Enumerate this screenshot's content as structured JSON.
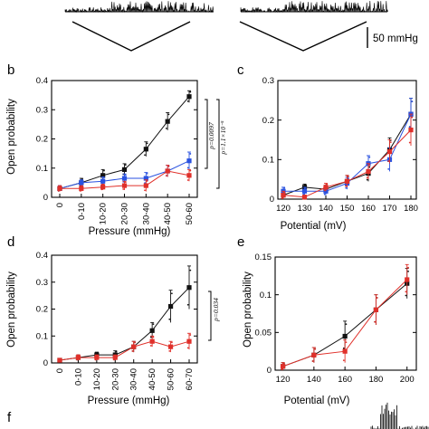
{
  "scale_bar": {
    "label": "50 mmHg"
  },
  "panel_letters": {
    "b": "b",
    "c": "c",
    "d": "d",
    "e": "e",
    "f": "f"
  },
  "chart_data": [
    {
      "panel": "b",
      "type": "line",
      "xlabel": "Pressure (mmHg)",
      "ylabel": "Open probability",
      "categories": [
        "0",
        "0-10",
        "10-20",
        "20-30",
        "30-40",
        "40-50",
        "50-60"
      ],
      "ylim": [
        0,
        0.4
      ],
      "yticks": [
        "0",
        "0.1",
        "0.2",
        "0.3",
        "0.4"
      ],
      "series": [
        {
          "color": "#111111",
          "values": [
            0.03,
            0.05,
            0.075,
            0.095,
            0.165,
            0.26,
            0.345
          ],
          "err": [
            0.01,
            0.015,
            0.02,
            0.02,
            0.025,
            0.03,
            0.02
          ]
        },
        {
          "color": "#2a52e0",
          "values": [
            0.03,
            0.05,
            0.055,
            0.065,
            0.065,
            0.09,
            0.125
          ],
          "err": [
            0.01,
            0.01,
            0.015,
            0.015,
            0.02,
            0.02,
            0.03
          ]
        },
        {
          "color": "#e0302a",
          "values": [
            0.03,
            0.03,
            0.035,
            0.04,
            0.04,
            0.09,
            0.075
          ],
          "err": [
            0.01,
            0.01,
            0.01,
            0.015,
            0.02,
            0.02,
            0.02
          ]
        }
      ],
      "brackets": [
        {
          "text": "p=0.0097"
        },
        {
          "text": "p=1.1×10⁻⁵"
        }
      ]
    },
    {
      "panel": "c",
      "type": "line",
      "xlabel": "Potential (mV)",
      "ylabel": "",
      "categories": [
        "120",
        "130",
        "140",
        "150",
        "160",
        "170",
        "180"
      ],
      "ylim": [
        0,
        0.3
      ],
      "yticks": [
        "0",
        "0.1",
        "0.2",
        "0.3"
      ],
      "series": [
        {
          "color": "#111111",
          "values": [
            0.01,
            0.03,
            0.025,
            0.045,
            0.065,
            0.125,
            0.215
          ],
          "err": [
            0.01,
            0.008,
            0.01,
            0.015,
            0.02,
            0.03,
            0.04
          ]
        },
        {
          "color": "#2a52e0",
          "values": [
            0.02,
            0.02,
            0.02,
            0.04,
            0.09,
            0.1,
            0.215
          ],
          "err": [
            0.01,
            0.01,
            0.01,
            0.015,
            0.02,
            0.03,
            0.04
          ]
        },
        {
          "color": "#e0302a",
          "values": [
            0.01,
            0.005,
            0.03,
            0.045,
            0.07,
            0.12,
            0.175
          ],
          "err": [
            0.01,
            0.005,
            0.01,
            0.015,
            0.02,
            0.03,
            0.04
          ]
        }
      ]
    },
    {
      "panel": "d",
      "type": "line",
      "xlabel": "Pressure (mmHg)",
      "ylabel": "Open probability",
      "categories": [
        "0",
        "0-10",
        "10-20",
        "20-30",
        "30-40",
        "40-50",
        "50-60",
        "60-70"
      ],
      "ylim": [
        0,
        0.4
      ],
      "yticks": [
        "0",
        "0.1",
        "0.2",
        "0.3",
        "0.4"
      ],
      "series": [
        {
          "color": "#111111",
          "values": [
            0.01,
            0.02,
            0.03,
            0.03,
            0.06,
            0.12,
            0.21,
            0.28
          ],
          "err": [
            0.005,
            0.01,
            0.01,
            0.015,
            0.02,
            0.03,
            0.06,
            0.08
          ]
        },
        {
          "color": "#e0302a",
          "values": [
            0.01,
            0.02,
            0.02,
            0.02,
            0.06,
            0.08,
            0.06,
            0.08
          ],
          "err": [
            0.005,
            0.01,
            0.01,
            0.01,
            0.02,
            0.02,
            0.02,
            0.03
          ]
        }
      ],
      "brackets": [
        {
          "text": "p=0.034"
        }
      ]
    },
    {
      "panel": "e",
      "type": "line",
      "xlabel": "Potential (mV)",
      "ylabel": "Open probability",
      "x": [
        120,
        140,
        160,
        180,
        200
      ],
      "xticks": [
        "120",
        "140",
        "160",
        "180",
        "200"
      ],
      "ylim": [
        0,
        0.15
      ],
      "yticks": [
        "0",
        "0.05",
        "0.1",
        "0.15"
      ],
      "series": [
        {
          "color": "#111111",
          "values": [
            0.005,
            0.02,
            0.045,
            0.08,
            0.115
          ],
          "err": [
            0.005,
            0.01,
            0.02,
            0.02,
            0.02
          ]
        },
        {
          "color": "#e0302a",
          "values": [
            0.005,
            0.02,
            0.025,
            0.08,
            0.12
          ],
          "err": [
            0.005,
            0.01,
            0.015,
            0.02,
            0.02
          ]
        }
      ]
    }
  ]
}
